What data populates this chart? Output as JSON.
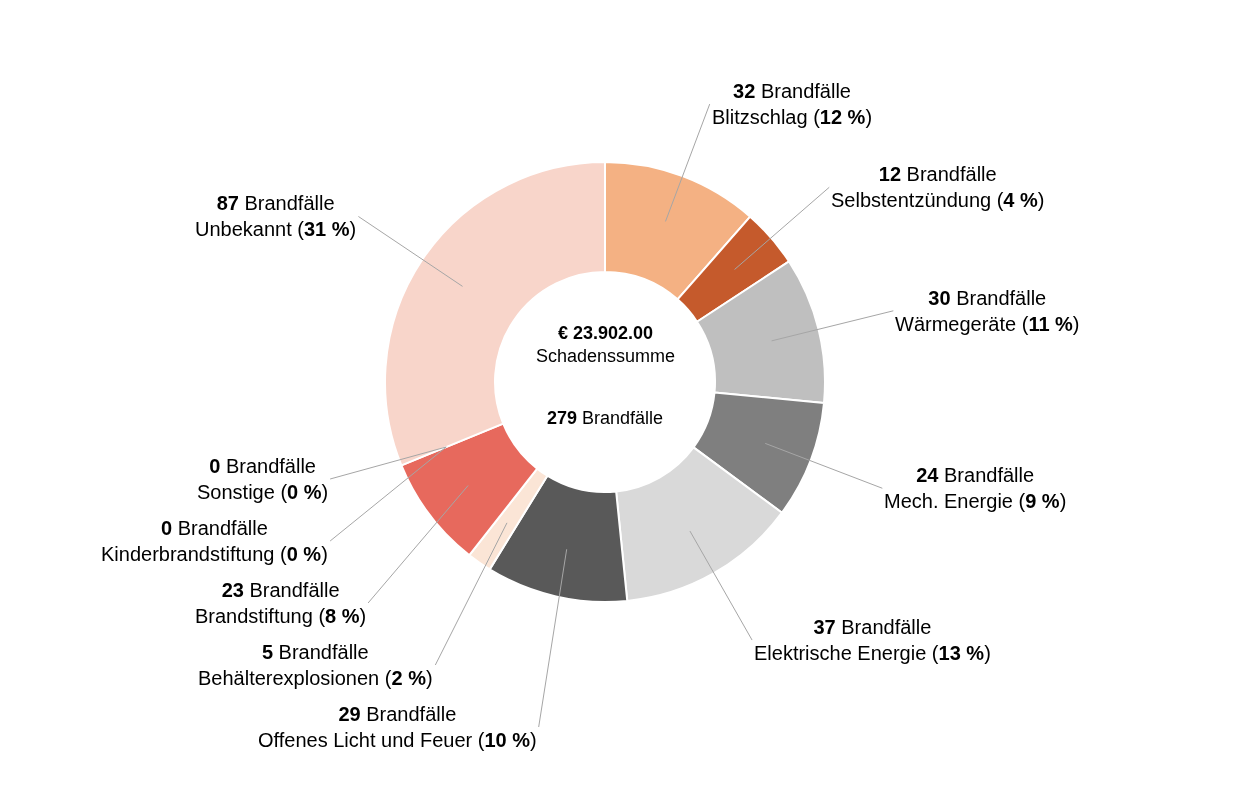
{
  "chart_data": {
    "type": "donut",
    "categories": [
      "Blitzschlag (12 %)",
      "Selbstentzündung (4 %)",
      "Wärmegeräte (11 %)",
      "Mech. Energie (9 %)",
      "Elektrische Energie (13 %)",
      "Offenes Licht und Feuer (10 %)",
      "Behälterexplosionen (2 %)",
      "Brandstiftung (8 %)",
      "Kinderbrandstiftung (0 %)",
      "Sonstige (0 %)",
      "Unbekannt (31 %)"
    ],
    "values": [
      32,
      12,
      30,
      24,
      37,
      29,
      5,
      23,
      0,
      0,
      87
    ],
    "colors": [
      "#f4b183",
      "#c55a2c",
      "#bfbfbf",
      "#7f7f7f",
      "#d9d9d9",
      "#595959",
      "#fbe5d6",
      "#e7695d",
      "#f2a08a",
      "#a6a6a6",
      "#f8d5ca"
    ],
    "value_labels": [
      "32 Brandfälle",
      "12 Brandfälle",
      "30 Brandfälle",
      "24 Brandfälle",
      "37 Brandfälle",
      "29 Brandfälle",
      "5 Brandfälle",
      "23 Brandfälle",
      "0 Brandfälle",
      "0 Brandfälle",
      "87 Brandfälle"
    ],
    "annotations": [
      "€ 23.902.00\nSchadenssumme",
      "279 Brandfälle"
    ]
  }
}
